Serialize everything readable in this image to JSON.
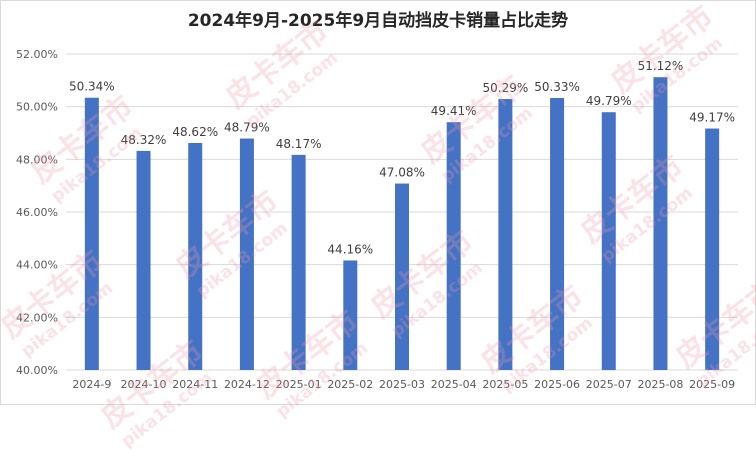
{
  "chart_data": {
    "type": "bar",
    "title": "2024年9月-2025年9月自动挡皮卡销量占比走势",
    "xlabel": "",
    "ylabel": "",
    "categories": [
      "2024-9",
      "2024-10",
      "2024-11",
      "2024-12",
      "2025-01",
      "2025-02",
      "2025-03",
      "2025-04",
      "2025-05",
      "2025-06",
      "2025-07",
      "2025-08",
      "2025-09"
    ],
    "values": [
      50.34,
      48.32,
      48.62,
      48.79,
      48.17,
      44.16,
      47.08,
      49.41,
      50.29,
      50.33,
      49.79,
      51.12,
      49.17
    ],
    "value_labels": [
      "50.34%",
      "48.32%",
      "48.62%",
      "48.79%",
      "48.17%",
      "44.16%",
      "47.08%",
      "49.41%",
      "50.29%",
      "50.33%",
      "49.79%",
      "51.12%",
      "49.17%"
    ],
    "ylim": [
      40,
      52
    ],
    "yticks": [
      40,
      42,
      44,
      46,
      48,
      50,
      52
    ],
    "ytick_labels": [
      "40.00%",
      "42.00%",
      "44.00%",
      "46.00%",
      "48.00%",
      "50.00%",
      "52.00%"
    ],
    "grid": true,
    "bar_color": "#4472c4"
  },
  "watermark": {
    "cn": "皮卡车市",
    "en": "pika18.com"
  }
}
